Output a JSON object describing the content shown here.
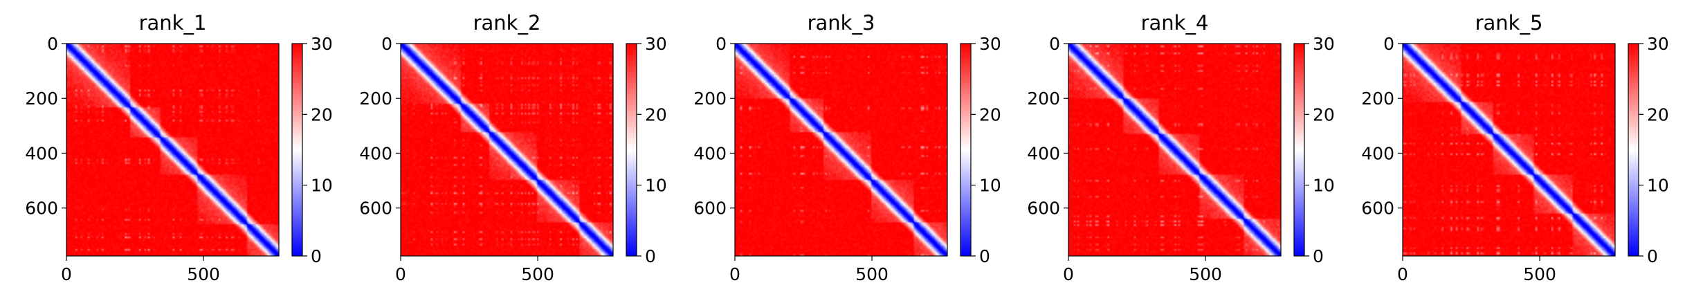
{
  "chart_data": [
    {
      "type": "heatmap",
      "title": "rank_1",
      "xlim": [
        0,
        775
      ],
      "ylim": [
        775,
        0
      ],
      "x_ticks": [
        0,
        500
      ],
      "y_ticks": [
        0,
        200,
        400,
        600
      ],
      "colorbar": {
        "min": 0,
        "max": 30,
        "ticks": [
          0,
          10,
          20,
          30
        ],
        "colors": [
          "#0000ff",
          "#ffffff",
          "#ff0000"
        ]
      },
      "domains": [
        [
          0,
          230
        ],
        [
          230,
          340
        ],
        [
          340,
          480
        ],
        [
          480,
          660
        ],
        [
          660,
          775
        ]
      ]
    },
    {
      "type": "heatmap",
      "title": "rank_2",
      "xlim": [
        0,
        775
      ],
      "ylim": [
        775,
        0
      ],
      "x_ticks": [
        0,
        500
      ],
      "y_ticks": [
        0,
        200,
        400,
        600
      ],
      "colorbar": {
        "min": 0,
        "max": 30,
        "ticks": [
          0,
          10,
          20,
          30
        ],
        "colors": [
          "#0000ff",
          "#ffffff",
          "#ff0000"
        ]
      },
      "domains": [
        [
          0,
          220
        ],
        [
          220,
          320
        ],
        [
          320,
          500
        ],
        [
          500,
          650
        ],
        [
          650,
          775
        ]
      ]
    },
    {
      "type": "heatmap",
      "title": "rank_3",
      "xlim": [
        0,
        775
      ],
      "ylim": [
        775,
        0
      ],
      "x_ticks": [
        0,
        500
      ],
      "y_ticks": [
        0,
        200,
        400,
        600
      ],
      "colorbar": {
        "min": 0,
        "max": 30,
        "ticks": [
          0,
          10,
          20,
          30
        ],
        "colors": [
          "#0000ff",
          "#ffffff",
          "#ff0000"
        ]
      },
      "domains": [
        [
          0,
          200
        ],
        [
          200,
          320
        ],
        [
          320,
          500
        ],
        [
          500,
          650
        ],
        [
          650,
          775
        ]
      ]
    },
    {
      "type": "heatmap",
      "title": "rank_4",
      "xlim": [
        0,
        775
      ],
      "ylim": [
        775,
        0
      ],
      "x_ticks": [
        0,
        500
      ],
      "y_ticks": [
        0,
        200,
        400,
        600
      ],
      "colorbar": {
        "min": 0,
        "max": 30,
        "ticks": [
          0,
          10,
          20,
          30
        ],
        "colors": [
          "#0000ff",
          "#ffffff",
          "#ff0000"
        ]
      },
      "domains": [
        [
          0,
          200
        ],
        [
          200,
          330
        ],
        [
          330,
          480
        ],
        [
          480,
          640
        ],
        [
          640,
          775
        ]
      ]
    },
    {
      "type": "heatmap",
      "title": "rank_5",
      "xlim": [
        0,
        775
      ],
      "ylim": [
        775,
        0
      ],
      "x_ticks": [
        0,
        500
      ],
      "y_ticks": [
        0,
        200,
        400,
        600
      ],
      "colorbar": {
        "min": 0,
        "max": 30,
        "ticks": [
          0,
          10,
          20,
          30
        ],
        "colors": [
          "#0000ff",
          "#ffffff",
          "#ff0000"
        ]
      },
      "domains": [
        [
          0,
          210
        ],
        [
          210,
          330
        ],
        [
          330,
          480
        ],
        [
          480,
          620
        ],
        [
          620,
          775
        ]
      ]
    }
  ]
}
